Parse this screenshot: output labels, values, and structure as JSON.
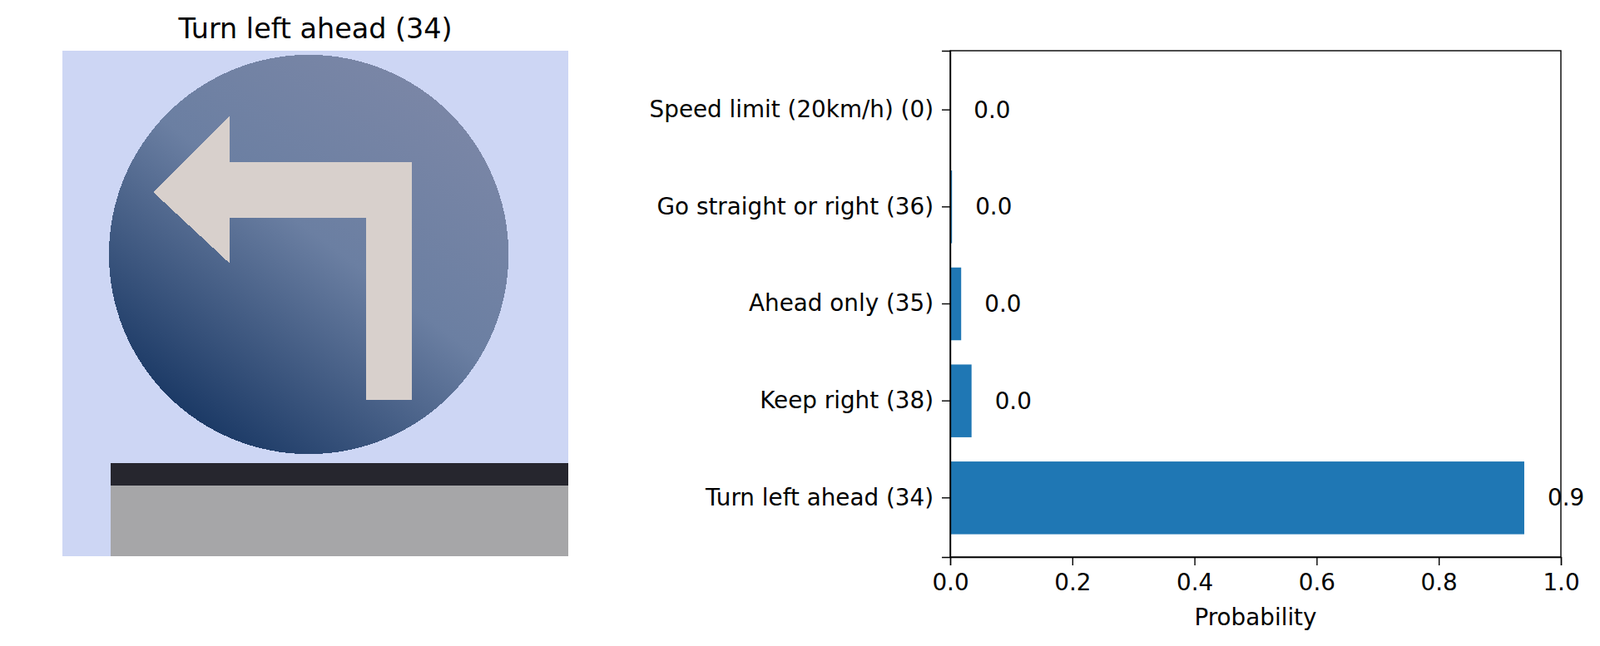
{
  "chart_data": [
    {
      "type": "image",
      "title": "Turn left ahead (34)"
    },
    {
      "type": "bar",
      "orientation": "horizontal",
      "categories": [
        "Speed limit (20km/h) (0)",
        "Go straight or right (36)",
        "Ahead only (35)",
        "Keep right (38)",
        "Turn left ahead (34)"
      ],
      "values": [
        0.0003,
        0.003,
        0.018,
        0.035,
        0.94
      ],
      "value_labels": [
        "0.0",
        "0.0",
        "0.0",
        "0.0",
        "0.9"
      ],
      "data_labels": true,
      "color": "#1f77b4",
      "x_label": "Probability",
      "xlim": [
        0,
        1
      ],
      "xticks": [
        {
          "value": 0,
          "label": "0.0"
        },
        0.2,
        0.4,
        0.6,
        0.8,
        {
          "value": 1,
          "label": "1.0"
        }
      ]
    }
  ]
}
